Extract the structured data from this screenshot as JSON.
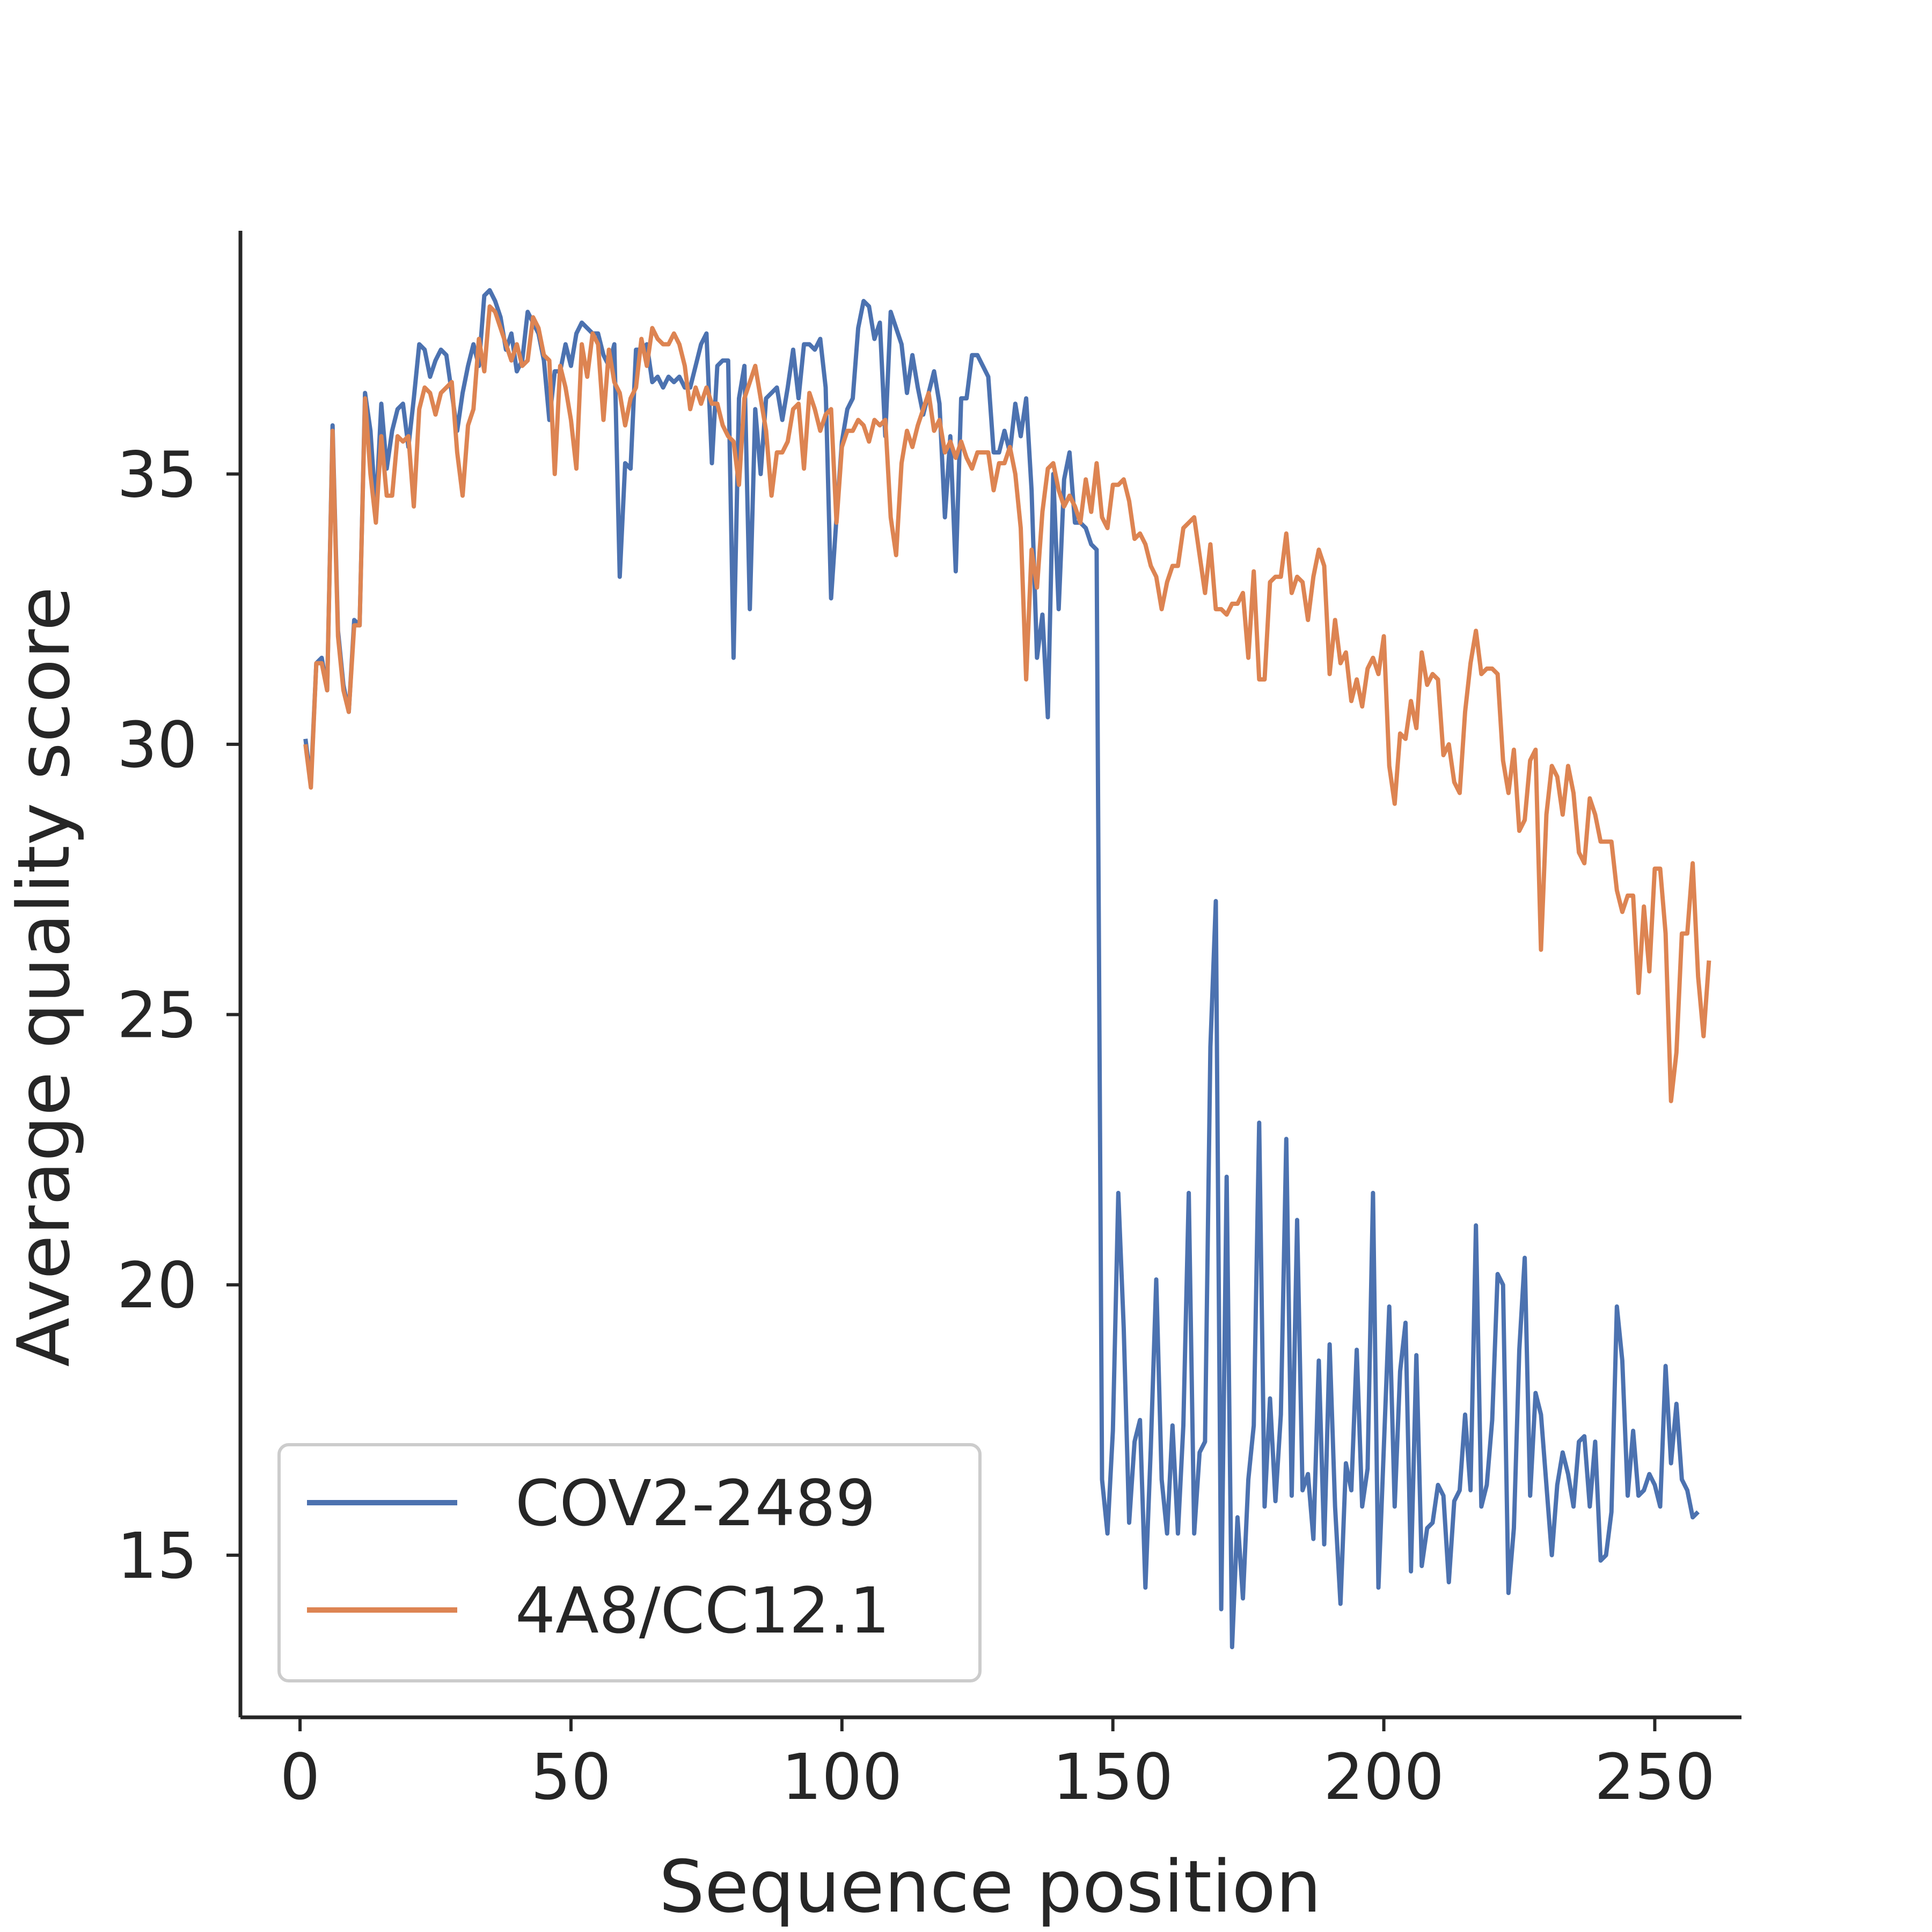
{
  "chart_data": {
    "type": "line",
    "xlabel": "Sequence position",
    "ylabel": "Average quality score",
    "xlim": [
      -11,
      266
    ],
    "ylim": [
      12,
      39.5
    ],
    "xticks": [
      0,
      50,
      100,
      150,
      200,
      250
    ],
    "yticks": [
      15,
      20,
      25,
      30,
      35
    ],
    "grid": false,
    "legend_position": "lower-left",
    "series": [
      {
        "name": "COV2-2489",
        "color": "#4c72b0",
        "x_start": 1,
        "values": [
          30.1,
          29.3,
          31.5,
          31.6,
          31.0,
          35.9,
          32.1,
          31.1,
          30.6,
          32.3,
          32.2,
          36.5,
          35.8,
          34.3,
          36.3,
          35.1,
          35.8,
          36.2,
          36.3,
          35.5,
          36.4,
          37.4,
          37.3,
          36.8,
          37.1,
          37.3,
          37.2,
          36.5,
          35.8,
          36.5,
          37.0,
          37.4,
          37.0,
          38.3,
          38.4,
          38.2,
          37.9,
          37.3,
          37.6,
          36.9,
          37.1,
          38.0,
          37.8,
          37.6,
          37.1,
          36.0,
          36.9,
          36.9,
          37.4,
          37.0,
          37.6,
          37.8,
          37.7,
          37.6,
          37.6,
          37.2,
          37.0,
          37.4,
          33.1,
          35.2,
          35.1,
          37.3,
          37.3,
          37.4,
          36.7,
          36.8,
          36.6,
          36.8,
          36.7,
          36.8,
          36.6,
          36.6,
          37.0,
          37.4,
          37.6,
          35.2,
          37.0,
          37.1,
          37.1,
          31.6,
          36.4,
          37.0,
          32.5,
          36.2,
          35.0,
          36.4,
          36.5,
          36.6,
          36.0,
          36.6,
          37.3,
          36.4,
          37.4,
          37.4,
          37.3,
          37.5,
          36.6,
          32.7,
          34.2,
          35.6,
          36.2,
          36.4,
          37.7,
          38.2,
          38.1,
          37.5,
          37.8,
          35.7,
          38.0,
          37.7,
          37.4,
          36.5,
          37.2,
          36.6,
          36.1,
          36.5,
          36.9,
          36.3,
          34.2,
          35.7,
          33.2,
          36.4,
          36.4,
          37.2,
          37.2,
          37.0,
          36.8,
          35.4,
          35.4,
          35.8,
          35.4,
          36.3,
          35.7,
          36.4,
          34.7,
          31.6,
          32.4,
          30.5,
          35.0,
          32.5,
          34.9,
          35.4,
          34.1,
          34.1,
          34.0,
          33.7,
          33.6,
          16.4,
          15.4,
          17.3,
          21.7,
          19.2,
          15.6,
          17.1,
          17.5,
          14.4,
          17.0,
          20.1,
          16.4,
          15.4,
          17.4,
          15.4,
          17.4,
          21.7,
          15.4,
          16.9,
          17.1,
          24.4,
          27.1,
          14.0,
          22.0,
          13.3,
          15.7,
          14.2,
          16.4,
          17.4,
          23.0,
          15.9,
          17.9,
          16.0,
          17.6,
          22.7,
          16.1,
          21.2,
          16.2,
          16.5,
          15.3,
          18.6,
          15.2,
          18.9,
          15.9,
          14.1,
          16.7,
          16.2,
          18.8,
          15.9,
          16.6,
          21.7,
          14.4,
          17.0,
          19.6,
          15.9,
          18.4,
          19.3,
          14.7,
          18.7,
          14.8,
          15.5,
          15.6,
          16.3,
          16.1,
          14.5,
          16.0,
          16.2,
          17.6,
          16.2,
          21.1,
          15.9,
          16.3,
          17.5,
          20.2,
          20.0,
          14.3,
          15.5,
          18.8,
          20.5,
          16.1,
          18.0,
          17.6,
          16.3,
          15.0,
          16.3,
          16.9,
          16.5,
          15.9,
          17.1,
          17.2,
          15.9,
          17.1,
          14.9,
          15.0,
          15.8,
          19.6,
          18.6,
          16.1,
          17.3,
          16.1,
          16.2,
          16.5,
          16.3,
          15.9,
          18.5,
          16.7,
          17.8,
          16.4,
          16.2,
          15.7,
          15.8
        ]
      },
      {
        "name": "4A8/CC12.1",
        "color": "#dd8452",
        "x_start": 1,
        "values": [
          30.0,
          29.2,
          31.5,
          31.5,
          31.0,
          35.8,
          32.0,
          31.0,
          30.6,
          32.2,
          32.2,
          36.4,
          35.0,
          34.1,
          35.7,
          34.6,
          34.6,
          35.7,
          35.6,
          35.7,
          34.4,
          36.2,
          36.6,
          36.5,
          36.1,
          36.5,
          36.6,
          36.7,
          35.4,
          34.6,
          35.9,
          36.2,
          37.5,
          36.9,
          38.1,
          38.0,
          37.7,
          37.4,
          37.1,
          37.4,
          37.0,
          37.1,
          37.9,
          37.7,
          37.2,
          37.1,
          35.0,
          37.0,
          36.6,
          36.0,
          35.1,
          37.4,
          36.8,
          37.6,
          37.4,
          36.0,
          37.3,
          36.7,
          36.5,
          35.9,
          36.4,
          36.6,
          37.5,
          37.0,
          37.7,
          37.5,
          37.4,
          37.4,
          37.6,
          37.4,
          37.0,
          36.2,
          36.6,
          36.3,
          36.6,
          36.3,
          36.3,
          35.9,
          35.7,
          35.6,
          34.8,
          36.4,
          36.7,
          37.0,
          36.4,
          35.8,
          34.6,
          35.4,
          35.4,
          35.6,
          36.2,
          36.3,
          35.1,
          36.5,
          36.2,
          35.8,
          36.1,
          36.2,
          34.1,
          35.5,
          35.8,
          35.8,
          36.0,
          35.9,
          35.6,
          36.0,
          35.9,
          36.0,
          34.2,
          33.5,
          35.2,
          35.8,
          35.5,
          35.9,
          36.2,
          36.5,
          35.8,
          36.0,
          35.4,
          35.6,
          35.3,
          35.6,
          35.3,
          35.1,
          35.4,
          35.4,
          35.4,
          34.7,
          35.2,
          35.2,
          35.5,
          35.0,
          34.0,
          31.2,
          33.6,
          32.9,
          34.3,
          35.1,
          35.2,
          34.7,
          34.4,
          34.6,
          34.4,
          34.1,
          34.9,
          34.3,
          35.2,
          34.2,
          34.0,
          34.8,
          34.8,
          34.9,
          34.5,
          33.8,
          33.9,
          33.7,
          33.3,
          33.1,
          32.5,
          33.0,
          33.3,
          33.3,
          34.0,
          34.1,
          34.2,
          33.5,
          32.8,
          33.7,
          32.5,
          32.5,
          32.4,
          32.6,
          32.6,
          32.8,
          31.6,
          33.2,
          31.2,
          31.2,
          33.0,
          33.1,
          33.1,
          33.9,
          32.8,
          33.1,
          33.0,
          32.3,
          33.1,
          33.6,
          33.3,
          31.3,
          32.3,
          31.5,
          31.7,
          30.8,
          31.2,
          30.7,
          31.4,
          31.6,
          31.3,
          32.0,
          29.6,
          28.9,
          30.2,
          30.1,
          30.8,
          30.3,
          31.7,
          31.1,
          31.3,
          31.2,
          29.8,
          30.0,
          29.3,
          29.1,
          30.6,
          31.5,
          32.1,
          31.3,
          31.4,
          31.4,
          31.3,
          29.7,
          29.1,
          29.9,
          28.4,
          28.6,
          29.7,
          29.9,
          26.2,
          28.7,
          29.6,
          29.4,
          28.7,
          29.6,
          29.1,
          28.0,
          27.8,
          29.0,
          28.7,
          28.2,
          28.2,
          28.2,
          27.3,
          26.9,
          27.2,
          27.2,
          25.4,
          27.0,
          25.8,
          27.7,
          27.7,
          26.5,
          23.4,
          24.3,
          26.5,
          26.5,
          27.8,
          25.7,
          24.6,
          26.0
        ]
      }
    ]
  }
}
